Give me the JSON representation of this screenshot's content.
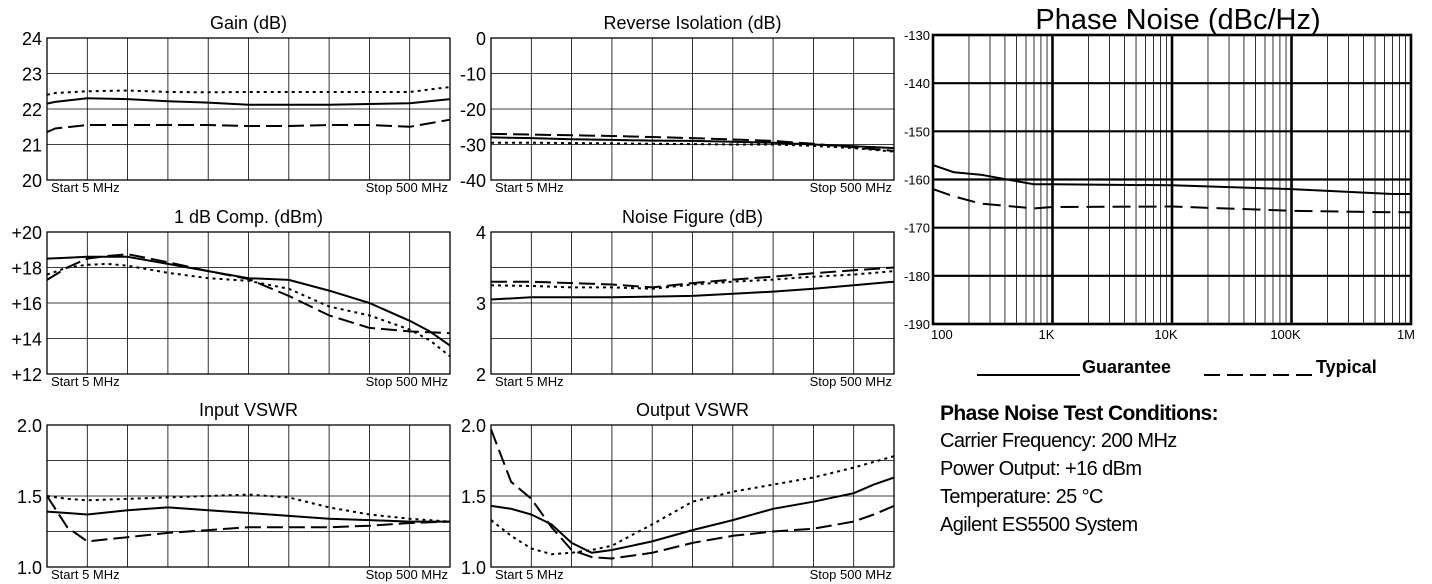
{
  "charts": [
    {
      "title": "Gain (dB)",
      "type": "line",
      "y_ticks": [
        "24",
        "23",
        "22",
        "21",
        "20"
      ],
      "ylim": [
        20,
        24
      ],
      "x_start_label": "Start  5  MHz",
      "x_stop_label": "Stop  500  MHz",
      "x": [
        0,
        0.02,
        0.1,
        0.2,
        0.3,
        0.4,
        0.5,
        0.6,
        0.7,
        0.8,
        0.9,
        1
      ],
      "series": [
        {
          "style": "solid",
          "values": [
            22.15,
            22.2,
            22.3,
            22.28,
            22.22,
            22.18,
            22.12,
            22.12,
            22.12,
            22.14,
            22.16,
            22.28
          ]
        },
        {
          "style": "dotted",
          "values": [
            22.4,
            22.45,
            22.5,
            22.52,
            22.48,
            22.47,
            22.48,
            22.48,
            22.48,
            22.48,
            22.48,
            22.62
          ]
        },
        {
          "style": "dashed",
          "values": [
            21.35,
            21.45,
            21.55,
            21.55,
            21.55,
            21.55,
            21.52,
            21.52,
            21.55,
            21.55,
            21.5,
            21.7
          ]
        }
      ]
    },
    {
      "title": "Reverse Isolation (dB)",
      "type": "line",
      "y_ticks": [
        "0",
        "-10",
        "-20",
        "-30",
        "-40"
      ],
      "ylim": [
        -40,
        0
      ],
      "x_start_label": "Start  5  MHz",
      "x_stop_label": "Stop  500  MHz",
      "x": [
        0,
        0.1,
        0.2,
        0.3,
        0.4,
        0.5,
        0.6,
        0.7,
        0.8,
        0.9,
        1
      ],
      "series": [
        {
          "style": "solid",
          "values": [
            -28,
            -28.2,
            -28.5,
            -28.7,
            -28.9,
            -29,
            -29.2,
            -29.5,
            -30,
            -30.5,
            -31
          ]
        },
        {
          "style": "dotted",
          "values": [
            -29.5,
            -29.5,
            -29.6,
            -29.7,
            -29.8,
            -29.9,
            -30,
            -30,
            -30.4,
            -31,
            -32
          ]
        },
        {
          "style": "dashed",
          "values": [
            -27,
            -27.2,
            -27.4,
            -27.6,
            -27.9,
            -28.2,
            -28.6,
            -29,
            -29.8,
            -30.8,
            -31.8
          ]
        }
      ]
    },
    {
      "title": "1 dB Comp. (dBm)",
      "type": "line",
      "y_ticks": [
        "+20",
        "+18",
        "+16",
        "+14",
        "+12"
      ],
      "ylim": [
        12,
        20
      ],
      "x_start_label": "Start  5  MHz",
      "x_stop_label": "Stop  500  MHz",
      "x": [
        0,
        0.05,
        0.1,
        0.15,
        0.2,
        0.3,
        0.4,
        0.5,
        0.6,
        0.7,
        0.8,
        0.9,
        0.95,
        1
      ],
      "series": [
        {
          "style": "solid",
          "values": [
            18.5,
            18.55,
            18.6,
            18.6,
            18.6,
            18.2,
            17.8,
            17.4,
            17.3,
            16.7,
            16,
            15,
            14.4,
            13.6
          ]
        },
        {
          "style": "dotted",
          "values": [
            17.6,
            18,
            18.15,
            18.2,
            18.1,
            17.7,
            17.4,
            17.25,
            16.8,
            15.8,
            15.3,
            14.5,
            13.9,
            13
          ]
        },
        {
          "style": "dashed",
          "values": [
            17.3,
            18,
            18.5,
            18.65,
            18.75,
            18.3,
            17.8,
            17.35,
            16.4,
            15.3,
            14.6,
            14.4,
            14.35,
            14.3
          ]
        }
      ]
    },
    {
      "title": "Noise Figure (dB)",
      "type": "line",
      "y_ticks": [
        "4",
        "3",
        "2"
      ],
      "ylim": [
        2,
        4
      ],
      "x_start_label": "Start  5  MHz",
      "x_stop_label": "Stop  500  MHz",
      "x": [
        0,
        0.1,
        0.2,
        0.3,
        0.4,
        0.5,
        0.6,
        0.7,
        0.8,
        0.9,
        1
      ],
      "series": [
        {
          "style": "solid",
          "values": [
            3.05,
            3.08,
            3.08,
            3.08,
            3.09,
            3.1,
            3.13,
            3.16,
            3.2,
            3.25,
            3.3
          ]
        },
        {
          "style": "dotted",
          "values": [
            3.25,
            3.24,
            3.22,
            3.22,
            3.2,
            3.26,
            3.3,
            3.33,
            3.37,
            3.4,
            3.45
          ]
        },
        {
          "style": "dashed",
          "values": [
            3.3,
            3.3,
            3.28,
            3.26,
            3.22,
            3.28,
            3.33,
            3.37,
            3.42,
            3.46,
            3.5
          ]
        }
      ]
    },
    {
      "title": "Input VSWR",
      "type": "line",
      "y_ticks": [
        "2.0",
        "1.5",
        "1.0"
      ],
      "ylim": [
        1.0,
        2.0
      ],
      "x_start_label": "Start  5  MHz",
      "x_stop_label": "Stop  500  MHz",
      "x": [
        0,
        0.05,
        0.1,
        0.2,
        0.3,
        0.4,
        0.5,
        0.6,
        0.7,
        0.8,
        0.9,
        1
      ],
      "series": [
        {
          "style": "solid",
          "values": [
            1.39,
            1.38,
            1.37,
            1.4,
            1.42,
            1.4,
            1.38,
            1.36,
            1.34,
            1.33,
            1.32,
            1.32
          ]
        },
        {
          "style": "dotted",
          "values": [
            1.5,
            1.48,
            1.47,
            1.48,
            1.49,
            1.5,
            1.51,
            1.49,
            1.42,
            1.37,
            1.34,
            1.32
          ]
        },
        {
          "style": "dashed",
          "values": [
            1.5,
            1.28,
            1.18,
            1.21,
            1.24,
            1.26,
            1.28,
            1.28,
            1.28,
            1.29,
            1.31,
            1.32
          ]
        }
      ]
    },
    {
      "title": "Output VSWR",
      "type": "line",
      "y_ticks": [
        "2.0",
        "1.5",
        "1.0"
      ],
      "ylim": [
        1.0,
        2.0
      ],
      "x_start_label": "Start  5  MHz",
      "x_stop_label": "Stop  500  MHz",
      "x": [
        0,
        0.05,
        0.1,
        0.15,
        0.2,
        0.25,
        0.3,
        0.4,
        0.5,
        0.6,
        0.7,
        0.8,
        0.9,
        0.95,
        1
      ],
      "series": [
        {
          "style": "solid",
          "values": [
            1.43,
            1.41,
            1.37,
            1.3,
            1.17,
            1.1,
            1.12,
            1.18,
            1.26,
            1.33,
            1.41,
            1.46,
            1.52,
            1.58,
            1.63
          ]
        },
        {
          "style": "dotted",
          "values": [
            1.33,
            1.22,
            1.13,
            1.09,
            1.1,
            1.12,
            1.15,
            1.3,
            1.46,
            1.53,
            1.58,
            1.63,
            1.7,
            1.74,
            1.78
          ]
        },
        {
          "style": "dashed",
          "values": [
            1.97,
            1.6,
            1.48,
            1.28,
            1.12,
            1.07,
            1.06,
            1.1,
            1.17,
            1.22,
            1.25,
            1.27,
            1.32,
            1.37,
            1.43
          ]
        }
      ]
    }
  ],
  "phase_noise": {
    "title": "Phase Noise (dBc/Hz)",
    "type": "line",
    "y_ticks": [
      "-130",
      "-140",
      "-150",
      "-160",
      "-170",
      "-180",
      "-190"
    ],
    "ylim": [
      -190,
      -130
    ],
    "x_scale": "log",
    "x_ticks": [
      "100",
      "1K",
      "10K",
      "100K",
      "1M"
    ],
    "xlim": [
      100,
      1000000
    ],
    "series": [
      {
        "style": "solid",
        "x": [
          100,
          150,
          250,
          700,
          1000,
          10000,
          100000,
          700000,
          1000000
        ],
        "values": [
          -157,
          -158.5,
          -159,
          -161,
          -161,
          -161.2,
          -162,
          -163,
          -163
        ]
      },
      {
        "style": "dashed",
        "x": [
          100,
          150,
          250,
          700,
          1000,
          10000,
          100000,
          700000,
          1000000
        ],
        "values": [
          -162,
          -163.5,
          -165,
          -166,
          -165.7,
          -165.6,
          -166.5,
          -166.8,
          -166.8
        ]
      }
    ],
    "legend": {
      "guarantee": "Guarantee",
      "typical": "Typical"
    }
  },
  "conditions": {
    "heading": "Phase Noise Test Conditions:",
    "lines": [
      "Carrier Frequency: 200 MHz",
      "Power Output: +16 dBm",
      "Temperature: 25 °C",
      "Agilent ES5500 System"
    ]
  }
}
